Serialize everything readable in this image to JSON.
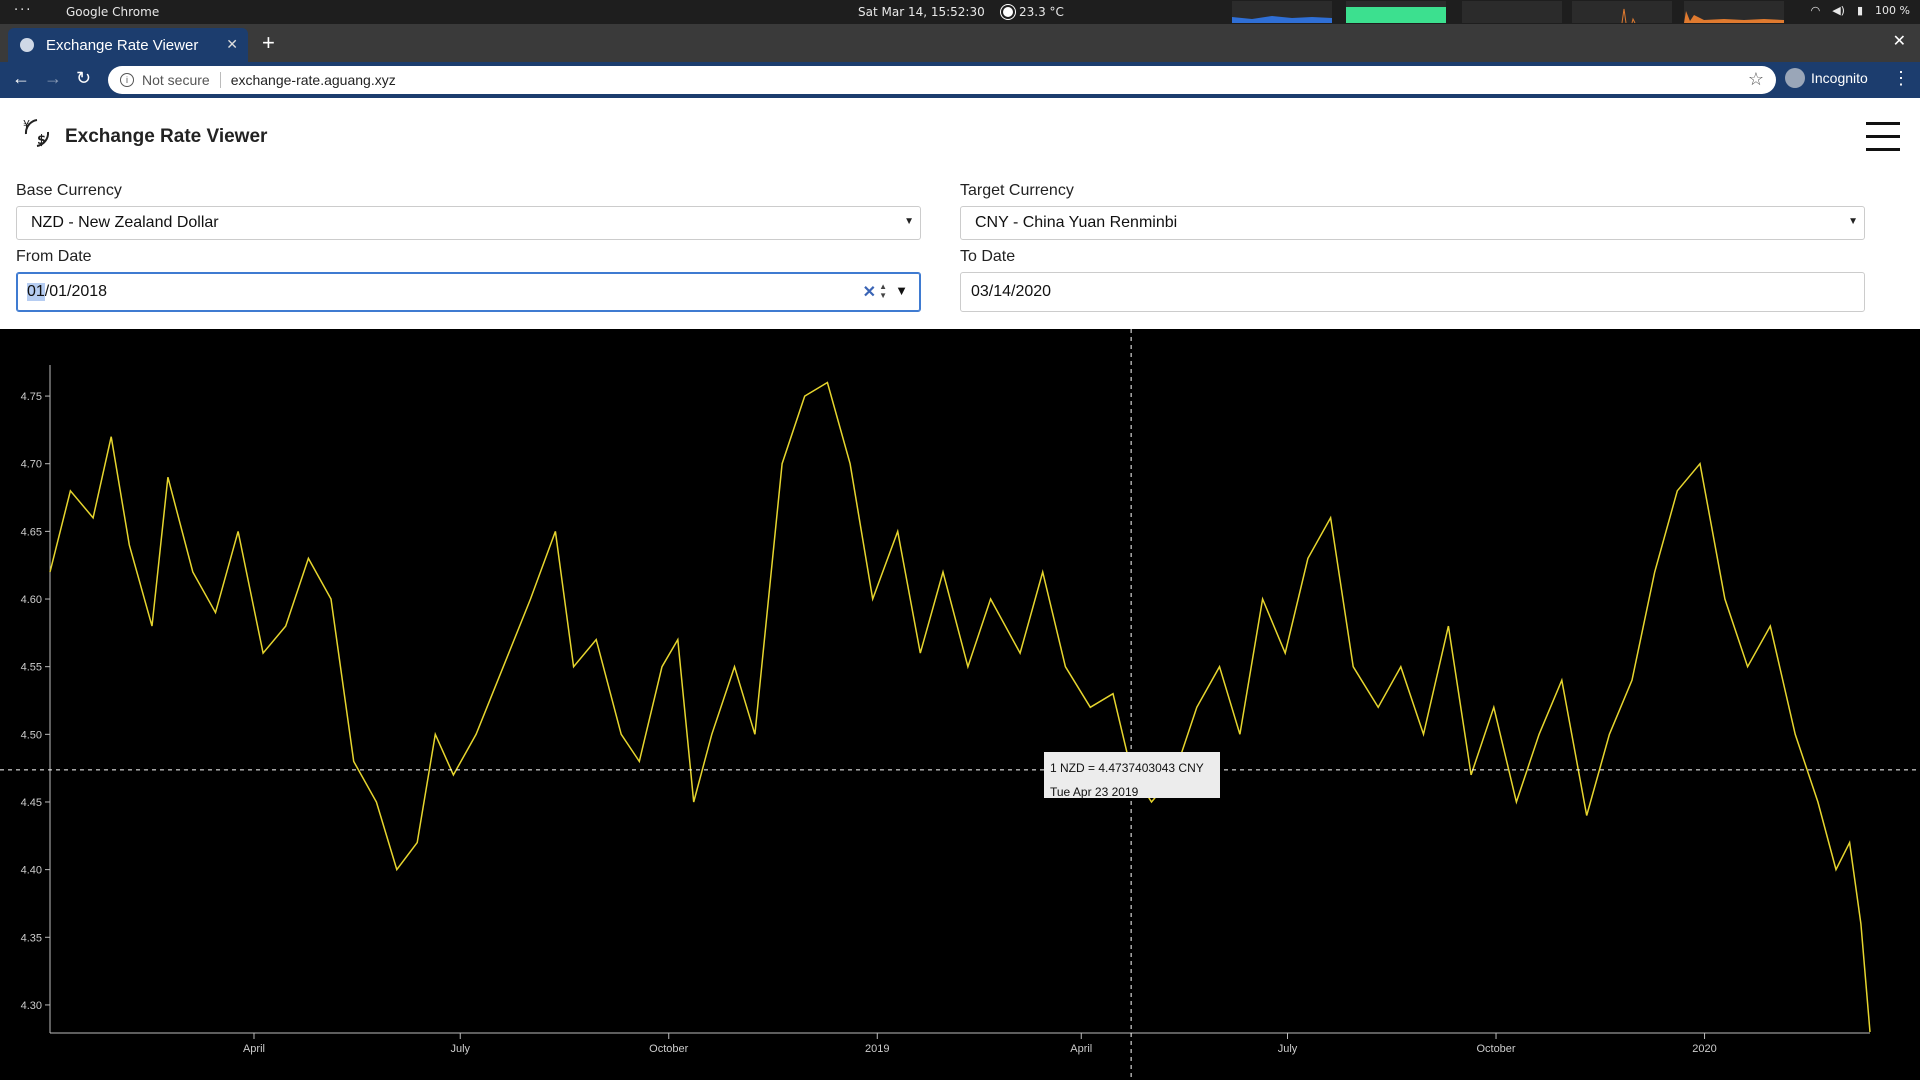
{
  "os": {
    "menu_dots": "···",
    "app_name": "Google Chrome",
    "clock": "Sat Mar 14, 15:52:30",
    "weather": "23.3 °C",
    "battery": "100 %"
  },
  "browser": {
    "tab_title": "Exchange Rate Viewer",
    "security": "Not secure",
    "url": "exchange-rate.aguang.xyz",
    "profile": "Incognito"
  },
  "app": {
    "title": "Exchange Rate Viewer",
    "base_label": "Base Currency",
    "base_value": "NZD - New Zealand Dollar",
    "target_label": "Target Currency",
    "target_value": "CNY - China Yuan Renminbi",
    "from_label": "From Date",
    "from_month": "01",
    "from_rest": "/01/2018",
    "to_label": "To Date",
    "to_value": "03/14/2020"
  },
  "tooltip": {
    "rate": "1 NZD = 4.4737403043 CNY",
    "date": "Tue Apr 23 2019"
  },
  "chart_data": {
    "type": "line",
    "series": [
      {
        "values": [
          [
            "2018-01-01",
            4.62
          ],
          [
            "2018-01-10",
            4.68
          ],
          [
            "2018-01-20",
            4.66
          ],
          [
            "2018-01-28",
            4.72
          ],
          [
            "2018-02-05",
            4.64
          ],
          [
            "2018-02-15",
            4.58
          ],
          [
            "2018-02-22",
            4.69
          ],
          [
            "2018-03-05",
            4.62
          ],
          [
            "2018-03-15",
            4.59
          ],
          [
            "2018-03-25",
            4.65
          ],
          [
            "2018-04-05",
            4.56
          ],
          [
            "2018-04-15",
            4.58
          ],
          [
            "2018-04-25",
            4.63
          ],
          [
            "2018-05-05",
            4.6
          ],
          [
            "2018-05-15",
            4.48
          ],
          [
            "2018-05-25",
            4.45
          ],
          [
            "2018-06-03",
            4.4
          ],
          [
            "2018-06-12",
            4.42
          ],
          [
            "2018-06-20",
            4.5
          ],
          [
            "2018-06-28",
            4.47
          ],
          [
            "2018-07-08",
            4.5
          ],
          [
            "2018-07-20",
            4.55
          ],
          [
            "2018-08-01",
            4.6
          ],
          [
            "2018-08-12",
            4.65
          ],
          [
            "2018-08-20",
            4.55
          ],
          [
            "2018-08-30",
            4.57
          ],
          [
            "2018-09-10",
            4.5
          ],
          [
            "2018-09-18",
            4.48
          ],
          [
            "2018-09-28",
            4.55
          ],
          [
            "2018-10-05",
            4.57
          ],
          [
            "2018-10-12",
            4.45
          ],
          [
            "2018-10-20",
            4.5
          ],
          [
            "2018-10-30",
            4.55
          ],
          [
            "2018-11-08",
            4.5
          ],
          [
            "2018-11-20",
            4.7
          ],
          [
            "2018-11-30",
            4.75
          ],
          [
            "2018-12-10",
            4.76
          ],
          [
            "2018-12-20",
            4.7
          ],
          [
            "2018-12-30",
            4.6
          ],
          [
            "2019-01-10",
            4.65
          ],
          [
            "2019-01-20",
            4.56
          ],
          [
            "2019-01-30",
            4.62
          ],
          [
            "2019-02-10",
            4.55
          ],
          [
            "2019-02-20",
            4.6
          ],
          [
            "2019-03-05",
            4.56
          ],
          [
            "2019-03-15",
            4.62
          ],
          [
            "2019-03-25",
            4.55
          ],
          [
            "2019-04-05",
            4.52
          ],
          [
            "2019-04-15",
            4.53
          ],
          [
            "2019-04-23",
            4.4737
          ],
          [
            "2019-05-02",
            4.45
          ],
          [
            "2019-05-12",
            4.47
          ],
          [
            "2019-05-22",
            4.52
          ],
          [
            "2019-06-01",
            4.55
          ],
          [
            "2019-06-10",
            4.5
          ],
          [
            "2019-06-20",
            4.6
          ],
          [
            "2019-06-30",
            4.56
          ],
          [
            "2019-07-10",
            4.63
          ],
          [
            "2019-07-20",
            4.66
          ],
          [
            "2019-07-30",
            4.55
          ],
          [
            "2019-08-10",
            4.52
          ],
          [
            "2019-08-20",
            4.55
          ],
          [
            "2019-08-30",
            4.5
          ],
          [
            "2019-09-10",
            4.58
          ],
          [
            "2019-09-20",
            4.47
          ],
          [
            "2019-09-30",
            4.52
          ],
          [
            "2019-10-10",
            4.45
          ],
          [
            "2019-10-20",
            4.5
          ],
          [
            "2019-10-30",
            4.54
          ],
          [
            "2019-11-10",
            4.44
          ],
          [
            "2019-11-20",
            4.5
          ],
          [
            "2019-11-30",
            4.54
          ],
          [
            "2019-12-10",
            4.62
          ],
          [
            "2019-12-20",
            4.68
          ],
          [
            "2019-12-30",
            4.7
          ],
          [
            "2020-01-10",
            4.6
          ],
          [
            "2020-01-20",
            4.55
          ],
          [
            "2020-01-30",
            4.58
          ],
          [
            "2020-02-10",
            4.5
          ],
          [
            "2020-02-20",
            4.45
          ],
          [
            "2020-02-28",
            4.4
          ],
          [
            "2020-03-05",
            4.42
          ],
          [
            "2020-03-10",
            4.36
          ],
          [
            "2020-03-14",
            4.28
          ]
        ]
      }
    ],
    "x_range": [
      "2018-01-01",
      "2020-03-14"
    ],
    "y_range": [
      4.28,
      4.77
    ],
    "x_ticks": [
      {
        "date": "2018-04-01",
        "label": "April"
      },
      {
        "date": "2018-07-01",
        "label": "July"
      },
      {
        "date": "2018-10-01",
        "label": "October"
      },
      {
        "date": "2019-01-01",
        "label": "2019"
      },
      {
        "date": "2019-04-01",
        "label": "April"
      },
      {
        "date": "2019-07-01",
        "label": "July"
      },
      {
        "date": "2019-10-01",
        "label": "October"
      },
      {
        "date": "2020-01-01",
        "label": "2020"
      }
    ],
    "y_ticks": [
      "4.30",
      "4.35",
      "4.40",
      "4.45",
      "4.50",
      "4.55",
      "4.60",
      "4.65",
      "4.70",
      "4.75"
    ],
    "crosshair": {
      "date": "2019-04-23",
      "value": 4.4737
    },
    "line_color": "#e6d52e",
    "background": "#000000"
  }
}
